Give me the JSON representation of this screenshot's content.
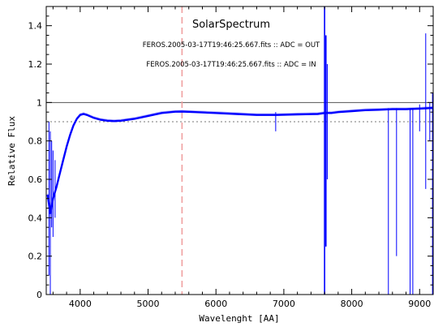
{
  "chart_data": {
    "type": "line",
    "title": "SolarSpectrum",
    "xlabel": "Wavelenght [AA]",
    "ylabel": "Relative Flux",
    "xlim": [
      3500,
      9200
    ],
    "ylim": [
      0,
      1.5
    ],
    "x_ticks": [
      4000,
      5000,
      6000,
      7000,
      8000,
      9000
    ],
    "y_ticks": [
      0,
      0.2,
      0.4,
      0.6,
      0.8,
      1,
      1.2,
      1.4
    ],
    "annotations": [
      "FEROS.2005-03-17T19:46:25.667.fits :: ADC = OUT",
      "FEROS.2005-03-17T19:46:25.667.fits :: ADC = IN"
    ],
    "reference_lines": [
      {
        "orientation": "horizontal",
        "y": 1.0,
        "style": "solid",
        "color": "#555555"
      },
      {
        "orientation": "horizontal",
        "y": 0.9,
        "style": "dotted",
        "color": "#777777"
      },
      {
        "orientation": "vertical",
        "x": 5500,
        "style": "dashed",
        "color": "#f0a0a0"
      }
    ],
    "series": [
      {
        "color": "#0000ff",
        "x": [
          3520,
          3560,
          3600,
          3650,
          3700,
          3750,
          3800,
          3850,
          3900,
          3950,
          4000,
          4050,
          4100,
          4200,
          4300,
          4400,
          4500,
          4600,
          4800,
          5000,
          5200,
          5400,
          5500,
          5700,
          6000,
          6300,
          6600,
          6900,
          7200,
          7500,
          7600,
          7700,
          7800,
          8000,
          8200,
          8400,
          8600,
          8800,
          9000,
          9200
        ],
        "y": [
          0.52,
          0.42,
          0.5,
          0.56,
          0.63,
          0.7,
          0.77,
          0.83,
          0.88,
          0.915,
          0.935,
          0.94,
          0.935,
          0.92,
          0.91,
          0.905,
          0.903,
          0.905,
          0.915,
          0.93,
          0.945,
          0.952,
          0.953,
          0.95,
          0.945,
          0.94,
          0.935,
          0.935,
          0.938,
          0.94,
          0.945,
          0.945,
          0.95,
          0.955,
          0.96,
          0.962,
          0.965,
          0.965,
          0.968,
          0.972
        ]
      }
    ],
    "absorption_features": [
      {
        "x": 3540,
        "min": 0.1,
        "max": 0.9
      },
      {
        "x": 3560,
        "min": 0.0,
        "max": 0.85
      },
      {
        "x": 3580,
        "min": 0.35,
        "max": 0.8
      },
      {
        "x": 3600,
        "min": 0.3,
        "max": 0.75
      },
      {
        "x": 3630,
        "min": 0.4,
        "max": 0.7
      },
      {
        "x": 6880,
        "min": 0.85,
        "max": 0.95
      },
      {
        "x": 7600,
        "min": 0.0,
        "max": 1.5
      },
      {
        "x": 7620,
        "min": 0.25,
        "max": 1.35
      },
      {
        "x": 7640,
        "min": 0.6,
        "max": 1.2
      },
      {
        "x": 8540,
        "min": 0.0,
        "max": 0.97
      },
      {
        "x": 8660,
        "min": 0.2,
        "max": 0.97
      },
      {
        "x": 8860,
        "min": 0.0,
        "max": 0.97
      },
      {
        "x": 8900,
        "min": 0.0,
        "max": 0.97
      },
      {
        "x": 9000,
        "min": 0.85,
        "max": 0.99
      },
      {
        "x": 9090,
        "min": 0.55,
        "max": 1.36
      },
      {
        "x": 9150,
        "min": 0.8,
        "max": 1.0
      },
      {
        "x": 9190,
        "min": 0.0,
        "max": 1.05
      }
    ]
  }
}
